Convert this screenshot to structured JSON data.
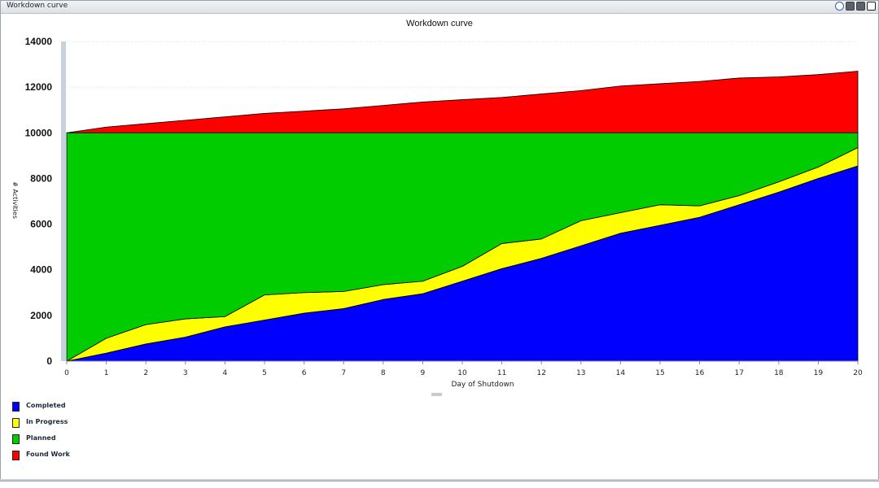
{
  "window": {
    "title": "Workdown curve"
  },
  "chart_data": {
    "type": "area",
    "title": "Workdown curve",
    "xlabel": "Day of Shutdown",
    "ylabel": "# Activities",
    "x": [
      0,
      1,
      2,
      3,
      4,
      5,
      6,
      7,
      8,
      9,
      10,
      11,
      12,
      13,
      14,
      15,
      16,
      17,
      18,
      19,
      20
    ],
    "xlim": [
      0,
      20
    ],
    "ylim": [
      0,
      14000
    ],
    "yticks": [
      0,
      2000,
      4000,
      6000,
      8000,
      10000,
      12000,
      14000
    ],
    "stacked": true,
    "grid": true,
    "legend_position": "bottom-left",
    "series": [
      {
        "name": "Completed",
        "color": "#0000ff",
        "values": [
          0,
          350,
          750,
          1050,
          1500,
          1800,
          2100,
          2300,
          2700,
          2950,
          3500,
          4050,
          4500,
          5050,
          5600,
          5950,
          6300,
          6850,
          7400,
          8000,
          8550
        ]
      },
      {
        "name": "In Progress",
        "color": "#ffff00",
        "values": [
          0,
          650,
          850,
          800,
          450,
          1100,
          900,
          750,
          650,
          550,
          650,
          1100,
          850,
          1100,
          900,
          900,
          500,
          400,
          450,
          500,
          800
        ]
      },
      {
        "name": "Planned",
        "color": "#00cc00",
        "values": [
          10000,
          9000,
          8400,
          8150,
          8050,
          7100,
          7000,
          6950,
          6650,
          6500,
          5850,
          4850,
          4650,
          3850,
          3500,
          3150,
          3200,
          2750,
          2150,
          1500,
          650
        ]
      },
      {
        "name": "Found Work",
        "color": "#ff0000",
        "values": [
          0,
          250,
          400,
          550,
          700,
          850,
          950,
          1050,
          1200,
          1350,
          1450,
          1550,
          1700,
          1850,
          2050,
          2150,
          2250,
          2400,
          2450,
          2550,
          2700
        ]
      }
    ]
  }
}
